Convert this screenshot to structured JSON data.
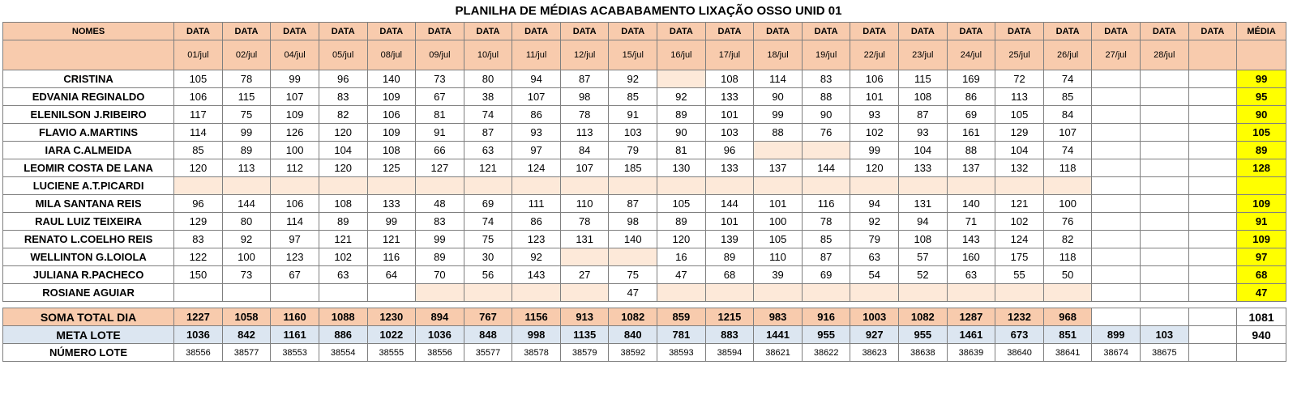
{
  "title": "PLANILHA DE MÉDIAS ACABABAMENTO LIXAÇÃO OSSO UNID 01",
  "header": {
    "names_label": "NOMES",
    "date_label": "DATA",
    "average_label": "MÉDIA",
    "dates": [
      "01/jul",
      "02/jul",
      "04/jul",
      "05/jul",
      "08/jul",
      "09/jul",
      "10/jul",
      "11/jul",
      "12/jul",
      "15/jul",
      "16/jul",
      "17/jul",
      "18/jul",
      "19/jul",
      "22/jul",
      "23/jul",
      "24/jul",
      "25/jul",
      "26/jul",
      "27/jul",
      "28/jul",
      ""
    ]
  },
  "rows": [
    {
      "name": "CRISTINA",
      "values": [
        "105",
        "78",
        "99",
        "96",
        "140",
        "73",
        "80",
        "94",
        "87",
        "92",
        "",
        "108",
        "114",
        "83",
        "106",
        "115",
        "169",
        "72",
        "74",
        "",
        "",
        ""
      ],
      "avg": "99",
      "blank": [
        10
      ]
    },
    {
      "name": "EDVANIA REGINALDO",
      "values": [
        "106",
        "115",
        "107",
        "83",
        "109",
        "67",
        "38",
        "107",
        "98",
        "85",
        "92",
        "133",
        "90",
        "88",
        "101",
        "108",
        "86",
        "113",
        "85",
        "",
        "",
        ""
      ],
      "avg": "95",
      "blank": []
    },
    {
      "name": "ELENILSON J.RIBEIRO",
      "values": [
        "117",
        "75",
        "109",
        "82",
        "106",
        "81",
        "74",
        "86",
        "78",
        "91",
        "89",
        "101",
        "99",
        "90",
        "93",
        "87",
        "69",
        "105",
        "84",
        "",
        "",
        ""
      ],
      "avg": "90",
      "blank": []
    },
    {
      "name": "FLAVIO A.MARTINS",
      "values": [
        "114",
        "99",
        "126",
        "120",
        "109",
        "91",
        "87",
        "93",
        "113",
        "103",
        "90",
        "103",
        "88",
        "76",
        "102",
        "93",
        "161",
        "129",
        "107",
        "",
        "",
        ""
      ],
      "avg": "105",
      "blank": []
    },
    {
      "name": "IARA C.ALMEIDA",
      "values": [
        "85",
        "89",
        "100",
        "104",
        "108",
        "66",
        "63",
        "97",
        "84",
        "79",
        "81",
        "96",
        "",
        "",
        "99",
        "104",
        "88",
        "104",
        "74",
        "",
        "",
        ""
      ],
      "avg": "89",
      "blank": [
        12,
        13
      ]
    },
    {
      "name": "LEOMIR COSTA DE LANA",
      "values": [
        "120",
        "113",
        "112",
        "120",
        "125",
        "127",
        "121",
        "124",
        "107",
        "185",
        "130",
        "133",
        "137",
        "144",
        "120",
        "133",
        "137",
        "132",
        "118",
        "",
        "",
        ""
      ],
      "avg": "128",
      "blank": []
    },
    {
      "name": "LUCIENE A.T.PICARDI",
      "values": [
        "",
        "",
        "",
        "",
        "",
        "",
        "",
        "",
        "",
        "",
        "",
        "",
        "",
        "",
        "",
        "",
        "",
        "",
        "",
        "",
        "",
        ""
      ],
      "avg": "",
      "blank": [
        0,
        1,
        2,
        3,
        4,
        5,
        6,
        7,
        8,
        9,
        10,
        11,
        12,
        13,
        14,
        15,
        16,
        17,
        18
      ]
    },
    {
      "name": "MILA SANTANA REIS",
      "values": [
        "96",
        "144",
        "106",
        "108",
        "133",
        "48",
        "69",
        "111",
        "110",
        "87",
        "105",
        "144",
        "101",
        "116",
        "94",
        "131",
        "140",
        "121",
        "100",
        "",
        "",
        ""
      ],
      "avg": "109",
      "blank": []
    },
    {
      "name": "RAUL LUIZ TEIXEIRA",
      "values": [
        "129",
        "80",
        "114",
        "89",
        "99",
        "83",
        "74",
        "86",
        "78",
        "98",
        "89",
        "101",
        "100",
        "78",
        "92",
        "94",
        "71",
        "102",
        "76",
        "",
        "",
        ""
      ],
      "avg": "91",
      "blank": []
    },
    {
      "name": "RENATO L.COELHO REIS",
      "values": [
        "83",
        "92",
        "97",
        "121",
        "121",
        "99",
        "75",
        "123",
        "131",
        "140",
        "120",
        "139",
        "105",
        "85",
        "79",
        "108",
        "143",
        "124",
        "82",
        "",
        "",
        ""
      ],
      "avg": "109",
      "blank": []
    },
    {
      "name": "WELLINTON G.LOIOLA",
      "values": [
        "122",
        "100",
        "123",
        "102",
        "116",
        "89",
        "30",
        "92",
        "",
        "",
        "16",
        "89",
        "110",
        "87",
        "63",
        "57",
        "160",
        "175",
        "118",
        "",
        "",
        ""
      ],
      "avg": "97",
      "blank": [
        8,
        9
      ]
    },
    {
      "name": "JULIANA R.PACHECO",
      "values": [
        "150",
        "73",
        "67",
        "63",
        "64",
        "70",
        "56",
        "143",
        "27",
        "75",
        "47",
        "68",
        "39",
        "69",
        "54",
        "52",
        "63",
        "55",
        "50",
        "",
        "",
        ""
      ],
      "avg": "68",
      "blank": []
    },
    {
      "name": "ROSIANE AGUIAR",
      "values": [
        "",
        "",
        "",
        "",
        "",
        "",
        "",
        "",
        "",
        "47",
        "",
        "",
        "",
        "",
        "",
        "",
        "",
        "",
        "",
        "",
        "",
        ""
      ],
      "avg": "47",
      "blank": [
        5,
        6,
        7,
        8,
        10,
        11,
        12,
        13,
        14,
        15,
        16,
        17,
        18
      ]
    }
  ],
  "soma": {
    "label": "SOMA TOTAL DIA",
    "values": [
      "1227",
      "1058",
      "1160",
      "1088",
      "1230",
      "894",
      "767",
      "1156",
      "913",
      "1082",
      "859",
      "1215",
      "983",
      "916",
      "1003",
      "1082",
      "1287",
      "1232",
      "968",
      "",
      "",
      ""
    ],
    "avg": "1081"
  },
  "meta": {
    "label": "META LOTE",
    "values": [
      "1036",
      "842",
      "1161",
      "886",
      "1022",
      "1036",
      "848",
      "998",
      "1135",
      "840",
      "781",
      "883",
      "1441",
      "955",
      "927",
      "955",
      "1461",
      "673",
      "851",
      "899",
      "103",
      ""
    ],
    "avg": "940"
  },
  "lote": {
    "label": "NÚMERO LOTE",
    "values": [
      "38556",
      "38577",
      "38553",
      "38554",
      "38555",
      "38556",
      "35577",
      "38578",
      "38579",
      "38592",
      "38593",
      "38594",
      "38621",
      "38622",
      "38623",
      "38638",
      "38639",
      "38640",
      "38641",
      "38674",
      "38675",
      ""
    ]
  }
}
